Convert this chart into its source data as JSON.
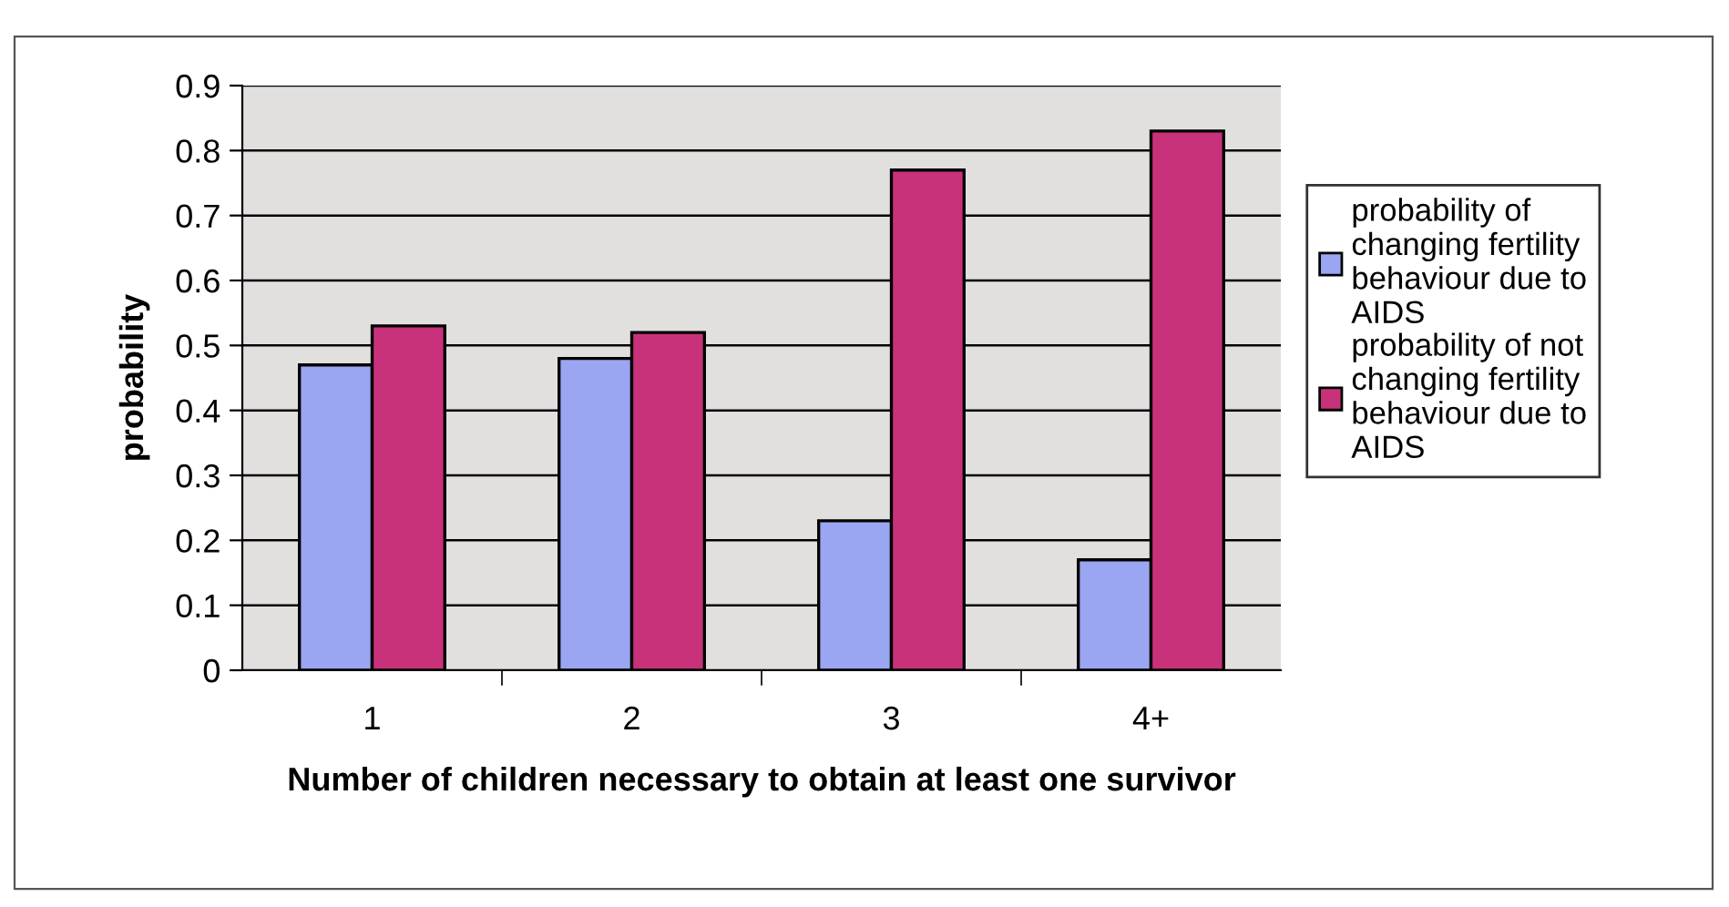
{
  "chart_data": {
    "type": "bar",
    "xlabel": "Number of children necessary to obtain at least one survivor",
    "ylabel": "probability",
    "categories": [
      "1",
      "2",
      "3",
      "4+"
    ],
    "series": [
      {
        "name": "probability of changing fertility behaviour due to AIDS",
        "color": "#9aa6f2",
        "values": [
          0.47,
          0.48,
          0.23,
          0.17
        ]
      },
      {
        "name": "probability of not changing fertility behaviour due to AIDS",
        "color": "#c8327a",
        "values": [
          0.53,
          0.52,
          0.77,
          0.83
        ]
      }
    ],
    "ylim": [
      0,
      0.9
    ],
    "yticks": [
      0,
      0.1,
      0.2,
      0.3,
      0.4,
      0.5,
      0.6,
      0.7,
      0.8,
      0.9
    ],
    "grid": "y",
    "legend": "right"
  }
}
